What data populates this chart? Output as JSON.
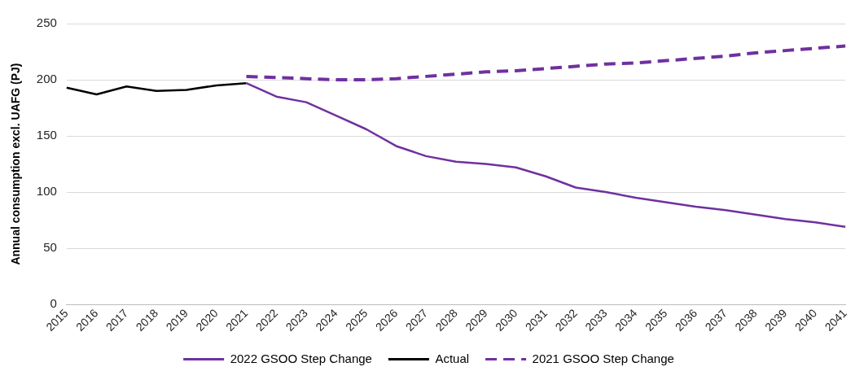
{
  "chart_data": {
    "type": "line",
    "ylabel": "Annual consumption excl. UAFG (PJ)",
    "categories": [
      "2015",
      "2016",
      "2017",
      "2018",
      "2019",
      "2020",
      "2021",
      "2022",
      "2023",
      "2024",
      "2025",
      "2026",
      "2027",
      "2028",
      "2029",
      "2030",
      "2031",
      "2032",
      "2033",
      "2034",
      "2035",
      "2036",
      "2037",
      "2038",
      "2039",
      "2040",
      "2041"
    ],
    "series": [
      {
        "name": "2022 GSOO Step Change",
        "color": "#7030a0",
        "line_style": "solid",
        "values": [
          null,
          null,
          null,
          null,
          null,
          null,
          197,
          185,
          180,
          168,
          156,
          141,
          132,
          127,
          125,
          122,
          114,
          104,
          100,
          95,
          91,
          87,
          84,
          80,
          76,
          73,
          69
        ]
      },
      {
        "name": "Actual",
        "color": "#000000",
        "line_style": "solid",
        "values": [
          193,
          187,
          194,
          190,
          191,
          195,
          197,
          null,
          null,
          null,
          null,
          null,
          null,
          null,
          null,
          null,
          null,
          null,
          null,
          null,
          null,
          null,
          null,
          null,
          null,
          null,
          null
        ]
      },
      {
        "name": "2021 GSOO Step Change",
        "color": "#7030a0",
        "line_style": "dashed",
        "values": [
          null,
          null,
          null,
          null,
          null,
          null,
          203,
          202,
          201,
          200,
          200,
          201,
          203,
          205,
          207,
          208,
          210,
          212,
          214,
          215,
          217,
          219,
          221,
          224,
          226,
          228,
          230
        ]
      }
    ],
    "ylim": [
      0,
      250
    ],
    "yticks": [
      0,
      50,
      100,
      150,
      200,
      250
    ],
    "grid": "y",
    "legend": "bottom",
    "marker": "none"
  }
}
